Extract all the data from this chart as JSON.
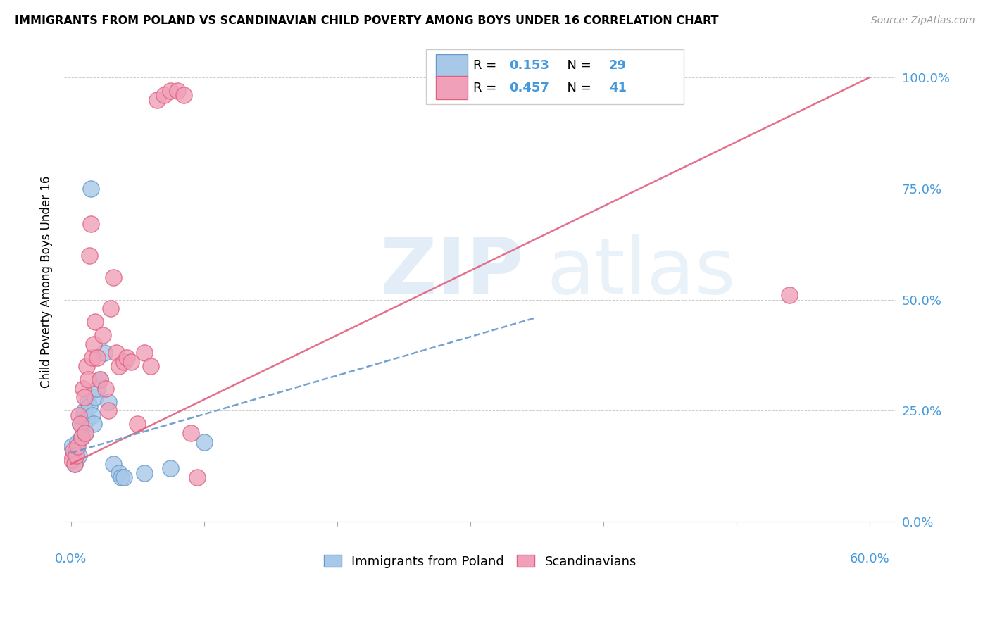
{
  "title": "IMMIGRANTS FROM POLAND VS SCANDINAVIAN CHILD POVERTY AMONG BOYS UNDER 16 CORRELATION CHART",
  "source": "Source: ZipAtlas.com",
  "ylabel": "Child Poverty Among Boys Under 16",
  "legend_label1": "Immigrants from Poland",
  "legend_label2": "Scandinavians",
  "R1": "0.153",
  "N1": "29",
  "R2": "0.457",
  "N2": "41",
  "color_blue": "#a8c8e8",
  "color_pink": "#f0a0b8",
  "color_blue_line": "#6699cc",
  "color_pink_line": "#e06080",
  "color_blue_text": "#4499dd",
  "blue_scatter_x": [
    0.001,
    0.002,
    0.003,
    0.004,
    0.005,
    0.006,
    0.007,
    0.008,
    0.009,
    0.01,
    0.011,
    0.012,
    0.013,
    0.014,
    0.015,
    0.016,
    0.017,
    0.018,
    0.02,
    0.022,
    0.025,
    0.028,
    0.032,
    0.036,
    0.038,
    0.04,
    0.055,
    0.075,
    0.1
  ],
  "blue_scatter_y": [
    0.17,
    0.15,
    0.13,
    0.16,
    0.18,
    0.15,
    0.22,
    0.19,
    0.24,
    0.25,
    0.2,
    0.23,
    0.27,
    0.26,
    0.75,
    0.24,
    0.22,
    0.28,
    0.3,
    0.32,
    0.38,
    0.27,
    0.13,
    0.11,
    0.1,
    0.1,
    0.11,
    0.12,
    0.18
  ],
  "pink_scatter_x": [
    0.001,
    0.002,
    0.003,
    0.004,
    0.005,
    0.006,
    0.007,
    0.008,
    0.009,
    0.01,
    0.011,
    0.012,
    0.013,
    0.014,
    0.015,
    0.016,
    0.017,
    0.018,
    0.02,
    0.022,
    0.024,
    0.026,
    0.028,
    0.03,
    0.032,
    0.034,
    0.036,
    0.04,
    0.042,
    0.045,
    0.05,
    0.055,
    0.06,
    0.065,
    0.07,
    0.075,
    0.08,
    0.085,
    0.09,
    0.095,
    0.54
  ],
  "pink_scatter_y": [
    0.14,
    0.16,
    0.13,
    0.15,
    0.17,
    0.24,
    0.22,
    0.19,
    0.3,
    0.28,
    0.2,
    0.35,
    0.32,
    0.6,
    0.67,
    0.37,
    0.4,
    0.45,
    0.37,
    0.32,
    0.42,
    0.3,
    0.25,
    0.48,
    0.55,
    0.38,
    0.35,
    0.36,
    0.37,
    0.36,
    0.22,
    0.38,
    0.35,
    0.95,
    0.96,
    0.97,
    0.97,
    0.96,
    0.2,
    0.1,
    0.51
  ],
  "xlim": [
    0.0,
    0.6
  ],
  "ylim": [
    0.0,
    1.05
  ],
  "pink_line_x": [
    0.0,
    0.6
  ],
  "pink_line_y": [
    0.13,
    1.0
  ],
  "blue_line_x": [
    0.0,
    0.35
  ],
  "blue_line_y": [
    0.155,
    0.46
  ]
}
